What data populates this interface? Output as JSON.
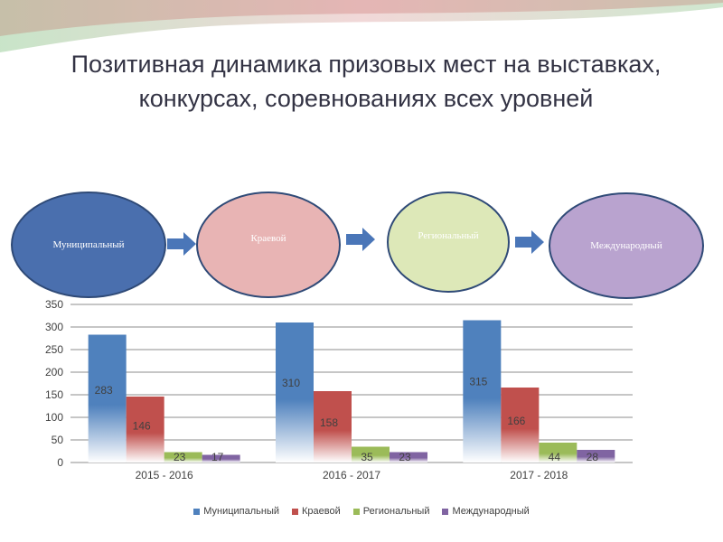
{
  "title": "Позитивная динамика призовых мест на выставках, конкурсах, соревнованиях  всех уровней",
  "flow": {
    "stages": [
      {
        "label": "Муниципальный",
        "color": "#4a6fae",
        "text_color": "#ffffff"
      },
      {
        "label": "Краевой",
        "color": "#e8b4b4",
        "text_color": "#ffffff"
      },
      {
        "label": "Региональный",
        "color": "#dde8b8",
        "text_color": "#ffffff"
      },
      {
        "label": "Международный",
        "color": "#b9a3cf",
        "text_color": "#ffffff"
      }
    ],
    "arrow_color": "#4a76b8"
  },
  "chart_data": {
    "type": "bar",
    "categories": [
      "2015 - 2016",
      "2016 - 2017",
      "2017 - 2018"
    ],
    "series": [
      {
        "name": "Муниципальный",
        "values": [
          283,
          310,
          315
        ],
        "color": "#4f81bd"
      },
      {
        "name": "Краевой",
        "values": [
          146,
          158,
          166
        ],
        "color": "#c0504d"
      },
      {
        "name": "Региональный",
        "values": [
          23,
          35,
          44
        ],
        "color": "#9bbb59"
      },
      {
        "name": "Международный",
        "values": [
          17,
          23,
          28
        ],
        "color": "#8064a2"
      }
    ],
    "ylim": [
      0,
      350
    ],
    "yticks": [
      "0",
      "50",
      "100",
      "150",
      "200",
      "250",
      "300",
      "350"
    ],
    "grid": true,
    "legend": "bottom"
  }
}
